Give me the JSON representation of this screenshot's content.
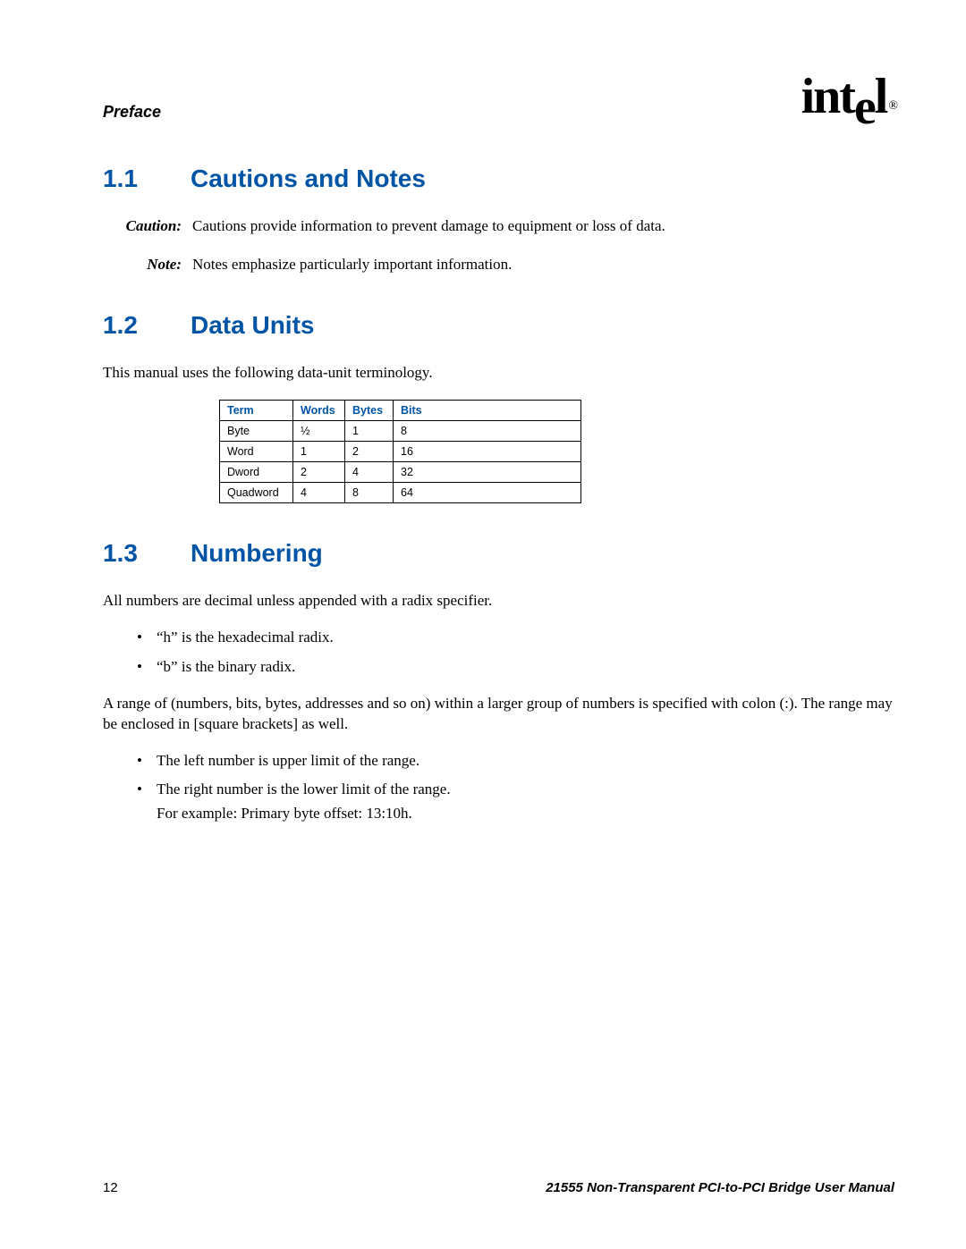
{
  "header": {
    "section_label": "Preface",
    "logo_text_pre": "int",
    "logo_text_drop": "e",
    "logo_text_post": "l",
    "logo_reg": "®"
  },
  "sections": {
    "s1": {
      "num": "1.1",
      "title": "Cautions and Notes",
      "defs": [
        {
          "label": "Caution:",
          "text": "Cautions provide information to prevent damage to equipment or loss of data."
        },
        {
          "label": "Note:",
          "text": "Notes emphasize particularly important information."
        }
      ]
    },
    "s2": {
      "num": "1.2",
      "title": "Data Units",
      "intro": "This manual uses the following data-unit terminology.",
      "table": {
        "headers": [
          "Term",
          "Words",
          "Bytes",
          "Bits"
        ],
        "rows": [
          [
            "Byte",
            "½",
            "1",
            "8"
          ],
          [
            "Word",
            "1",
            "2",
            "16"
          ],
          [
            "Dword",
            "2",
            "4",
            "32"
          ],
          [
            "Quadword",
            "4",
            "8",
            "64"
          ]
        ]
      }
    },
    "s3": {
      "num": "1.3",
      "title": "Numbering",
      "intro": "All numbers are decimal unless appended with a radix specifier.",
      "bullets1": [
        "“h” is the hexadecimal radix.",
        "“b” is the binary radix."
      ],
      "para2": "A range of (numbers, bits, bytes, addresses and so on) within a larger group of numbers is specified with colon (:). The range may be enclosed in [square brackets] as well.",
      "bullets2": [
        {
          "main": "The left number is upper limit of the range."
        },
        {
          "main": "The right number is the lower limit of the range.",
          "sub": "For example: Primary byte offset: 13:10h."
        }
      ]
    }
  },
  "footer": {
    "page": "12",
    "title": "21555 Non-Transparent PCI-to-PCI Bridge User Manual"
  }
}
